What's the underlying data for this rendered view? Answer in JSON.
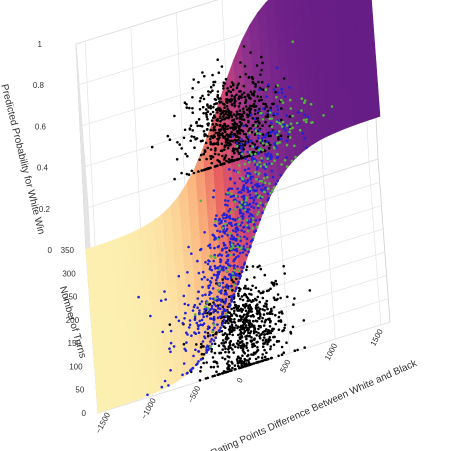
{
  "chart_data": {
    "type": "scatter",
    "subtype": "3d-scatter-with-logistic-surface",
    "title": "",
    "xlabel": "Rating Points Difference Between White and Black",
    "ylabel": "Number of Turns",
    "zlabel": "Predicted Probability for White Win",
    "x_ticks": [
      -1500,
      -1000,
      -500,
      0,
      500,
      1000,
      1500
    ],
    "x_tick_labels": [
      "−1500",
      "−1000",
      "−500",
      "0",
      "500",
      "1000",
      "1500"
    ],
    "y_ticks": [
      0,
      50,
      100,
      150,
      200,
      250,
      300,
      350
    ],
    "y_tick_labels": [
      "0",
      "50",
      "100",
      "150",
      "200",
      "250",
      "300",
      "350"
    ],
    "z_ticks": [
      0,
      0.2,
      0.4,
      0.6,
      0.8,
      1
    ],
    "z_tick_labels": [
      "0",
      "0.2",
      "0.4",
      "0.6",
      "0.8",
      "1"
    ],
    "xlim": [
      -1600,
      1600
    ],
    "ylim": [
      0,
      350
    ],
    "zlim": [
      0,
      1
    ],
    "grid": true,
    "legend": "none",
    "surface": {
      "model": "logistic",
      "x_steepness": 0.0042,
      "x_midpoint": 0,
      "turns_effect": 0.002,
      "colorscale": [
        "#fcf0b0",
        "#fbb67e",
        "#e8605f",
        "#c1407f",
        "#8b2f8e",
        "#661d86"
      ]
    },
    "series": [
      {
        "color": "#000000",
        "clusters": [
          {
            "x_center": 40,
            "x_spread": 230,
            "y_center": 75,
            "y_spread": 55,
            "z": 0,
            "count": 650
          },
          {
            "x_center": 0,
            "x_spread": 230,
            "y_center": 75,
            "y_spread": 55,
            "z": 1,
            "count": 650
          }
        ]
      },
      {
        "color": "#1f22d9",
        "clusters": [
          {
            "x_center": -60,
            "x_spread": 300,
            "y_center": 85,
            "y_spread": 60,
            "z": "on-surface",
            "count": 700
          }
        ]
      },
      {
        "color": "#55b83f",
        "clusters": [
          {
            "x_center": 250,
            "x_spread": 300,
            "y_center": 80,
            "y_spread": 55,
            "z": "on-surface",
            "count": 180
          }
        ]
      }
    ]
  },
  "colors": {
    "background": "#ffffff",
    "grid": "#e3e3e3",
    "text": "#333333"
  }
}
